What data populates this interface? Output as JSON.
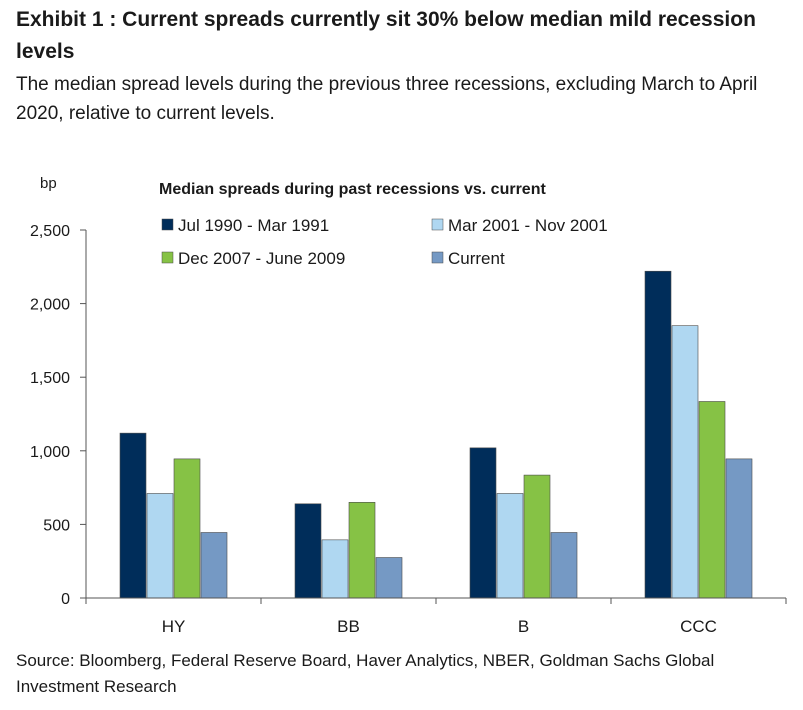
{
  "header": {
    "title": "Exhibit 1 : Current spreads currently sit 30% below median mild recession levels",
    "subtitle": "The median spread levels during the previous three recessions, excluding March to April 2020, relative to current levels."
  },
  "footer": {
    "source": "Source: Bloomberg, Federal Reserve Board, Haver Analytics, NBER, Goldman Sachs Global Investment Research"
  },
  "chart_data": {
    "type": "bar",
    "title": "Median spreads during past recessions vs. current",
    "ylabel": "bp",
    "xlabel": "",
    "ylim": [
      0,
      2500
    ],
    "yticks": [
      0,
      500,
      1000,
      1500,
      2000,
      2500
    ],
    "ytick_labels": [
      "0",
      "500",
      "1,000",
      "1,500",
      "2,000",
      "2,500"
    ],
    "categories": [
      "HY",
      "BB",
      "B",
      "CCC"
    ],
    "legend_position": "top",
    "grid": false,
    "series": [
      {
        "name": "Jul 1990 - Mar 1991",
        "color": "#002d5a",
        "values": [
          1120,
          640,
          1020,
          2220
        ]
      },
      {
        "name": "Mar 2001 - Nov 2001",
        "color": "#afd7f1",
        "values": [
          710,
          395,
          710,
          1850
        ]
      },
      {
        "name": "Dec 2007 - June 2009",
        "color": "#86c245",
        "values": [
          945,
          650,
          835,
          1335
        ]
      },
      {
        "name": "Current",
        "color": "#7599c4",
        "values": [
          445,
          275,
          445,
          945
        ]
      }
    ]
  }
}
